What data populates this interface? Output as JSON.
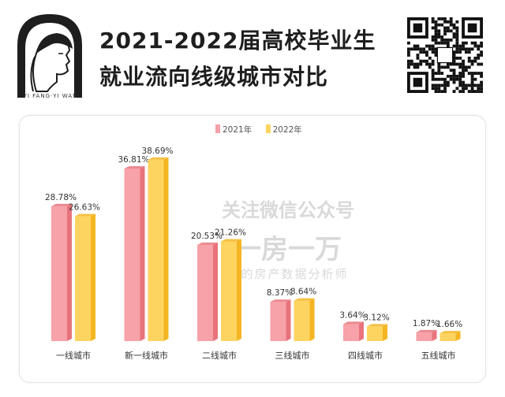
{
  "logo": {
    "caption": "YI FANG·YI WAN"
  },
  "title": {
    "line1": "2021-2022届高校毕业生",
    "line2": "就业流向线级城市对比"
  },
  "watermark": {
    "line1": "关注微信公众号",
    "line2": "一房一万",
    "line3": "你的房产数据分析师"
  },
  "colors": {
    "pink": "#f7a1a8",
    "pink_dark": "#e8737c",
    "yellow": "#fed460",
    "yellow_dark": "#f4b522"
  },
  "icons": {
    "logo": "woman-profile-arch-logo",
    "qr": "qr-code-icon"
  },
  "chart_data": {
    "type": "bar",
    "categories": [
      "一线城市",
      "新一线城市",
      "二线城市",
      "三线城市",
      "四线城市",
      "五线城市"
    ],
    "series": [
      {
        "name": "2021年",
        "values": [
          28.78,
          36.81,
          20.53,
          8.37,
          3.64,
          1.87
        ],
        "labels": [
          "28.78%",
          "36.81%",
          "20.53%",
          "8.37%",
          "3.64%",
          "1.87%"
        ]
      },
      {
        "name": "2022年",
        "values": [
          26.63,
          38.69,
          21.26,
          8.64,
          3.12,
          1.66
        ],
        "labels": [
          "26.63%",
          "38.69%",
          "21.26%",
          "8.64%",
          "3.12%",
          "1.66%"
        ]
      }
    ],
    "title": "",
    "xlabel": "",
    "ylabel": "",
    "ylim": [
      0,
      40
    ],
    "unit": "%",
    "legend": "top-center",
    "grid": false
  }
}
